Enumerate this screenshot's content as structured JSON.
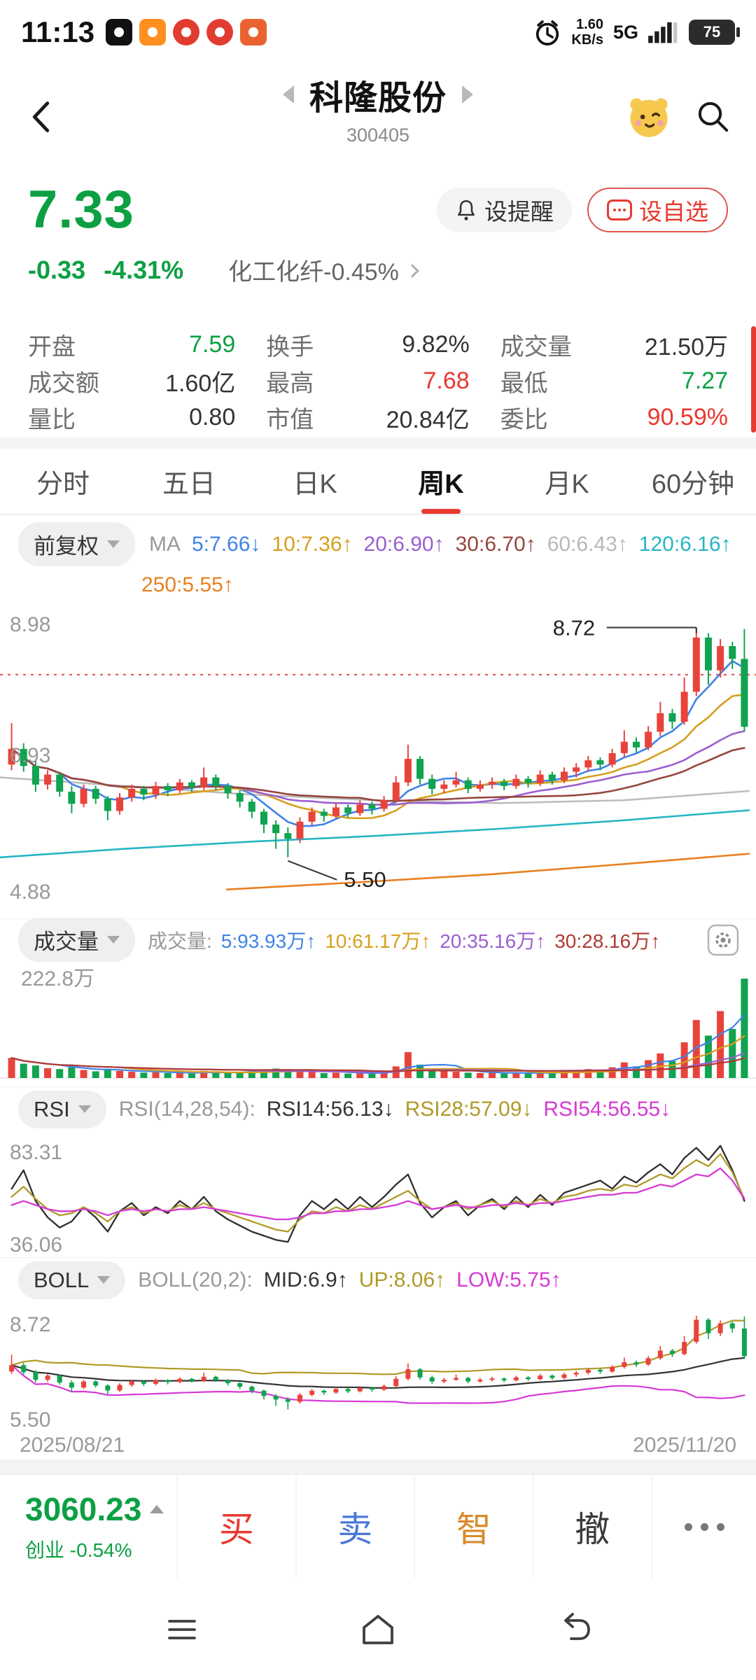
{
  "colors": {
    "green": "#0ca043",
    "red": "#e8392f",
    "dark": "#333333",
    "blue": "#4a78d8",
    "orange": "#d98a2b",
    "gray": "#9a9a9a"
  },
  "status": {
    "time": "11:13",
    "speed_value": "1.60",
    "speed_unit": "KB/s",
    "network": "5G",
    "battery": "75"
  },
  "header": {
    "title": "科隆股份",
    "code": "300405"
  },
  "price": {
    "current": "7.33",
    "change": "-0.33",
    "change_pct": "-4.31%",
    "sector": "化工化纤-0.45%",
    "alert": "设提醒",
    "watch": "设自选"
  },
  "stats": [
    {
      "label": "开盘",
      "value": "7.59",
      "color": "#0ca043"
    },
    {
      "label": "换手",
      "value": "9.82%",
      "color": "#333333"
    },
    {
      "label": "成交量",
      "value": "21.50万",
      "color": "#333333"
    },
    {
      "label": "成交额",
      "value": "1.60亿",
      "color": "#333333"
    },
    {
      "label": "最高",
      "value": "7.68",
      "color": "#e8392f"
    },
    {
      "label": "最低",
      "value": "7.27",
      "color": "#0ca043"
    },
    {
      "label": "量比",
      "value": "0.80",
      "color": "#333333"
    },
    {
      "label": "市值",
      "value": "20.84亿",
      "color": "#333333"
    },
    {
      "label": "委比",
      "value": "90.59%",
      "color": "#e8392f"
    }
  ],
  "tabs": [
    {
      "label": "分时"
    },
    {
      "label": "五日"
    },
    {
      "label": "日K"
    },
    {
      "label": "周K",
      "active": true
    },
    {
      "label": "月K"
    },
    {
      "label": "60分钟"
    }
  ],
  "panels": {
    "adjust": "前复权",
    "vol": "成交量",
    "rsi": "RSI",
    "boll": "BOLL"
  },
  "legend": {
    "ma": [
      {
        "t": "MA",
        "c": "#999999"
      },
      {
        "t": "5:7.66↓",
        "c": "#3f83e8"
      },
      {
        "t": "10:7.36↑",
        "c": "#d6a01e"
      },
      {
        "t": "20:6.90↑",
        "c": "#9a5fd0"
      },
      {
        "t": "30:6.70↑",
        "c": "#96463e"
      },
      {
        "t": "60:6.43↑",
        "c": "#b8b8b8"
      },
      {
        "t": "120:6.16↑",
        "c": "#27b5c3"
      }
    ],
    "ma250": {
      "t": "250:5.55↑",
      "c": "#e8801e"
    },
    "vol": [
      {
        "t": "成交量:",
        "c": "#999999"
      },
      {
        "t": "5:93.93万↑",
        "c": "#3f83e8"
      },
      {
        "t": "10:61.17万↑",
        "c": "#d6a01e"
      },
      {
        "t": "20:35.16万↑",
        "c": "#9a5fd0"
      },
      {
        "t": "30:28.16万↑",
        "c": "#b03a34"
      }
    ],
    "rsi": [
      {
        "t": "RSI(14,28,54):",
        "c": "#999999"
      },
      {
        "t": "RSI14:56.13↓",
        "c": "#333333"
      },
      {
        "t": "RSI28:57.09↓",
        "c": "#b09a28"
      },
      {
        "t": "RSI54:56.55↓",
        "c": "#d63ad6"
      }
    ],
    "boll": [
      {
        "t": "BOLL(20,2):",
        "c": "#999999"
      },
      {
        "t": "MID:6.9↑",
        "c": "#333333"
      },
      {
        "t": "UP:8.06↑",
        "c": "#b09a28"
      },
      {
        "t": "LOW:5.75↑",
        "c": "#d63ad6"
      }
    ]
  },
  "dates": {
    "start": "2025/08/21",
    "end": "2025/11/20"
  },
  "trade": {
    "index_value": "3060.23",
    "index_name": "创业",
    "index_change": "-0.54%",
    "buttons": [
      {
        "label": "买",
        "color": "#e8392f"
      },
      {
        "label": "卖",
        "color": "#4a78d8"
      },
      {
        "label": "智",
        "color": "#d98a2b"
      },
      {
        "label": "撤",
        "color": "#3a3a3a"
      }
    ]
  },
  "chart_data": {
    "type": "candlestick",
    "timeframe": "周K",
    "x_range": [
      "2025/08/21",
      "2025/11/20"
    ],
    "kline": {
      "ylim": [
        4.88,
        8.98
      ],
      "y_ticks": [
        "8.98",
        "6.93",
        "4.88"
      ],
      "mid_tick_value": 6.93,
      "dotted_line": 8.06,
      "annotation_high": {
        "label": "8.72",
        "value": 8.72
      },
      "annotation_low": {
        "label": "5.50",
        "value": 5.5
      },
      "up_color": "#e8433a",
      "down_color": "#10a350",
      "ma_periods": [
        {
          "p": 5,
          "color": "#3f83e8"
        },
        {
          "p": 10,
          "color": "#d6a01e"
        },
        {
          "p": 20,
          "color": "#9a5fd0"
        },
        {
          "p": 30,
          "color": "#96463e"
        }
      ],
      "ma_long": [
        {
          "name": "MA60",
          "color": "#bdbdbd",
          "x0": 0.0,
          "points": [
            6.62,
            6.5,
            6.38,
            6.3,
            6.26,
            6.3,
            6.43
          ]
        },
        {
          "name": "MA120",
          "color": "#27b5c3",
          "x0": 0.0,
          "points": [
            5.5,
            5.62,
            5.72,
            5.8,
            5.9,
            6.02,
            6.16
          ]
        },
        {
          "name": "MA250",
          "color": "#e8801e",
          "x0": 0.3,
          "points": [
            5.05,
            5.15,
            5.26,
            5.4,
            5.55
          ]
        }
      ],
      "candles": [
        [
          6.8,
          7.38,
          6.72,
          7.02,
          45
        ],
        [
          7.02,
          7.1,
          6.7,
          6.78,
          32
        ],
        [
          6.78,
          6.85,
          6.42,
          6.52,
          28
        ],
        [
          6.52,
          6.72,
          6.45,
          6.66,
          22
        ],
        [
          6.66,
          6.7,
          6.35,
          6.42,
          20
        ],
        [
          6.42,
          6.5,
          6.12,
          6.25,
          24
        ],
        [
          6.25,
          6.52,
          6.2,
          6.46,
          18
        ],
        [
          6.46,
          6.5,
          6.25,
          6.32,
          15
        ],
        [
          6.32,
          6.36,
          6.02,
          6.15,
          19
        ],
        [
          6.15,
          6.4,
          6.1,
          6.34,
          16
        ],
        [
          6.34,
          6.52,
          6.28,
          6.46,
          14
        ],
        [
          6.46,
          6.5,
          6.3,
          6.38,
          12
        ],
        [
          6.38,
          6.56,
          6.32,
          6.5,
          13
        ],
        [
          6.5,
          6.54,
          6.36,
          6.44,
          11
        ],
        [
          6.44,
          6.6,
          6.4,
          6.55,
          12
        ],
        [
          6.55,
          6.58,
          6.42,
          6.48,
          10
        ],
        [
          6.48,
          6.76,
          6.44,
          6.62,
          16
        ],
        [
          6.62,
          6.66,
          6.44,
          6.5,
          12
        ],
        [
          6.5,
          6.54,
          6.32,
          6.4,
          11
        ],
        [
          6.4,
          6.44,
          6.2,
          6.28,
          13
        ],
        [
          6.28,
          6.32,
          6.05,
          6.14,
          15
        ],
        [
          6.14,
          6.18,
          5.84,
          5.96,
          18
        ],
        [
          5.96,
          6.02,
          5.62,
          5.84,
          21
        ],
        [
          5.84,
          5.92,
          5.5,
          5.76,
          19
        ],
        [
          5.76,
          6.06,
          5.7,
          6.0,
          17
        ],
        [
          6.0,
          6.2,
          5.95,
          6.14,
          15
        ],
        [
          6.14,
          6.18,
          6.0,
          6.08,
          11
        ],
        [
          6.08,
          6.26,
          6.04,
          6.2,
          12
        ],
        [
          6.2,
          6.24,
          6.06,
          6.12,
          10
        ],
        [
          6.12,
          6.3,
          6.08,
          6.24,
          12
        ],
        [
          6.24,
          6.28,
          6.1,
          6.18,
          10
        ],
        [
          6.18,
          6.36,
          6.14,
          6.3,
          13
        ],
        [
          6.3,
          6.64,
          6.26,
          6.55,
          26
        ],
        [
          6.55,
          7.08,
          6.5,
          6.88,
          58
        ],
        [
          6.88,
          6.92,
          6.52,
          6.6,
          30
        ],
        [
          6.6,
          6.66,
          6.38,
          6.46,
          20
        ],
        [
          6.46,
          6.58,
          6.4,
          6.52,
          15
        ],
        [
          6.52,
          6.7,
          6.48,
          6.58,
          14
        ],
        [
          6.58,
          6.62,
          6.4,
          6.46,
          12
        ],
        [
          6.46,
          6.58,
          6.42,
          6.52,
          11
        ],
        [
          6.52,
          6.62,
          6.46,
          6.56,
          12
        ],
        [
          6.56,
          6.6,
          6.44,
          6.5,
          10
        ],
        [
          6.5,
          6.66,
          6.46,
          6.6,
          12
        ],
        [
          6.6,
          6.64,
          6.48,
          6.54,
          11
        ],
        [
          6.54,
          6.72,
          6.5,
          6.66,
          13
        ],
        [
          6.66,
          6.7,
          6.52,
          6.58,
          12
        ],
        [
          6.58,
          6.76,
          6.54,
          6.7,
          15
        ],
        [
          6.7,
          6.82,
          6.62,
          6.76,
          17
        ],
        [
          6.76,
          6.92,
          6.7,
          6.86,
          20
        ],
        [
          6.86,
          6.9,
          6.72,
          6.8,
          16
        ],
        [
          6.8,
          7.02,
          6.76,
          6.96,
          24
        ],
        [
          6.96,
          7.28,
          6.9,
          7.12,
          35
        ],
        [
          7.12,
          7.18,
          6.96,
          7.04,
          26
        ],
        [
          7.04,
          7.34,
          7.0,
          7.26,
          40
        ],
        [
          7.26,
          7.68,
          7.2,
          7.52,
          55
        ],
        [
          7.52,
          7.58,
          7.3,
          7.4,
          38
        ],
        [
          7.4,
          8.02,
          7.36,
          7.82,
          80
        ],
        [
          7.82,
          8.72,
          7.76,
          8.58,
          130
        ],
        [
          8.58,
          8.64,
          7.92,
          8.12,
          95
        ],
        [
          8.12,
          8.56,
          8.02,
          8.46,
          150
        ],
        [
          8.46,
          8.52,
          8.14,
          8.28,
          110
        ],
        [
          8.28,
          8.7,
          7.27,
          7.33,
          222.8
        ]
      ]
    },
    "volume": {
      "ylabel": "222.8万",
      "ymax": 222.8,
      "ma": [
        {
          "p": 5,
          "color": "#3f83e8"
        },
        {
          "p": 10,
          "color": "#d6a01e"
        },
        {
          "p": 20,
          "color": "#9a5fd0"
        },
        {
          "p": 30,
          "color": "#b03a34"
        }
      ]
    },
    "rsi": {
      "ylim": [
        34,
        86
      ],
      "label_top": "83.31",
      "label_bottom": "36.06",
      "series": [
        {
          "name": "RSI14",
          "color": "#2e2e2e",
          "values": [
            62,
            71,
            56,
            48,
            43,
            46,
            53,
            48,
            41,
            51,
            55,
            49,
            53,
            50,
            56,
            52,
            58,
            51,
            47,
            44,
            41,
            39,
            37,
            36,
            49,
            56,
            52,
            57,
            52,
            58,
            53,
            58,
            64,
            69,
            55,
            48,
            53,
            56,
            49,
            54,
            57,
            52,
            58,
            53,
            59,
            54,
            60,
            62,
            64,
            66,
            62,
            68,
            65,
            70,
            74,
            69,
            77,
            82,
            76,
            83,
            71,
            56
          ]
        },
        {
          "name": "RSI28",
          "color": "#b09a28",
          "values": [
            58,
            63,
            57,
            52,
            49,
            50,
            53,
            50,
            46,
            51,
            53,
            50,
            52,
            51,
            54,
            52,
            55,
            52,
            50,
            48,
            46,
            44,
            42,
            41,
            47,
            51,
            50,
            53,
            51,
            54,
            52,
            55,
            58,
            61,
            56,
            52,
            53,
            55,
            52,
            54,
            56,
            53,
            56,
            54,
            57,
            55,
            58,
            59,
            61,
            62,
            61,
            64,
            63,
            66,
            69,
            67,
            72,
            76,
            73,
            79,
            70,
            57
          ]
        },
        {
          "name": "RSI54",
          "color": "#d63ad6",
          "values": [
            54,
            56,
            54,
            52,
            51,
            51,
            52,
            51,
            49,
            51,
            52,
            51,
            52,
            51,
            52,
            52,
            53,
            52,
            51,
            50,
            49,
            48,
            47,
            47,
            48,
            50,
            50,
            51,
            51,
            52,
            52,
            53,
            54,
            56,
            54,
            52,
            53,
            54,
            53,
            53,
            54,
            54,
            55,
            54,
            55,
            55,
            56,
            57,
            58,
            59,
            59,
            60,
            60,
            62,
            64,
            63,
            66,
            69,
            68,
            72,
            66,
            57
          ]
        }
      ]
    },
    "boll": {
      "ylim": [
        5.1,
        9.0
      ],
      "label_top": "8.72",
      "label_bottom": "5.50",
      "colors": {
        "mid": "#333333",
        "up": "#b09a28",
        "low": "#d63ad6"
      }
    }
  }
}
